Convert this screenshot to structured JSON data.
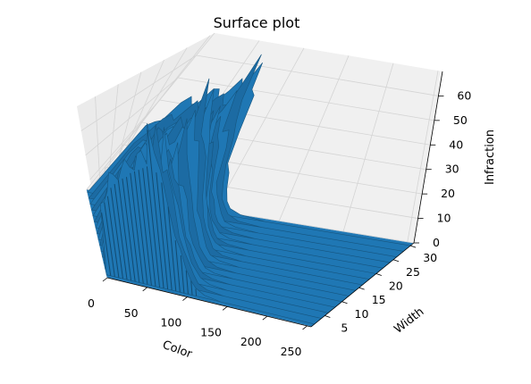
{
  "chart_data": {
    "type": "surface",
    "title": "Surface plot",
    "xlabel": "Color",
    "ylabel": "Width",
    "zlabel": "Infraction",
    "x_ticks": [
      0,
      50,
      100,
      150,
      200,
      250
    ],
    "y_ticks": [
      5,
      10,
      15,
      20,
      25,
      30
    ],
    "z_ticks": [
      0,
      10,
      20,
      30,
      40,
      50,
      60
    ],
    "xlim": [
      0,
      255
    ],
    "ylim": [
      1,
      31
    ],
    "zlim": [
      0,
      70
    ],
    "grid": true,
    "color": "#1f77b4",
    "surface_profile": {
      "x": [
        0,
        5,
        10,
        15,
        20,
        25,
        30,
        35,
        40,
        45,
        50,
        55,
        60,
        65,
        70,
        75,
        80,
        85,
        90,
        95,
        100,
        105,
        110,
        120,
        140,
        160,
        200,
        255
      ],
      "z_max": [
        0,
        28,
        33,
        36,
        40,
        42,
        44,
        45,
        46,
        48,
        49,
        50,
        51,
        52,
        68,
        50,
        46,
        36,
        22,
        16,
        10,
        6,
        3,
        1,
        0,
        0,
        0,
        0
      ]
    }
  }
}
